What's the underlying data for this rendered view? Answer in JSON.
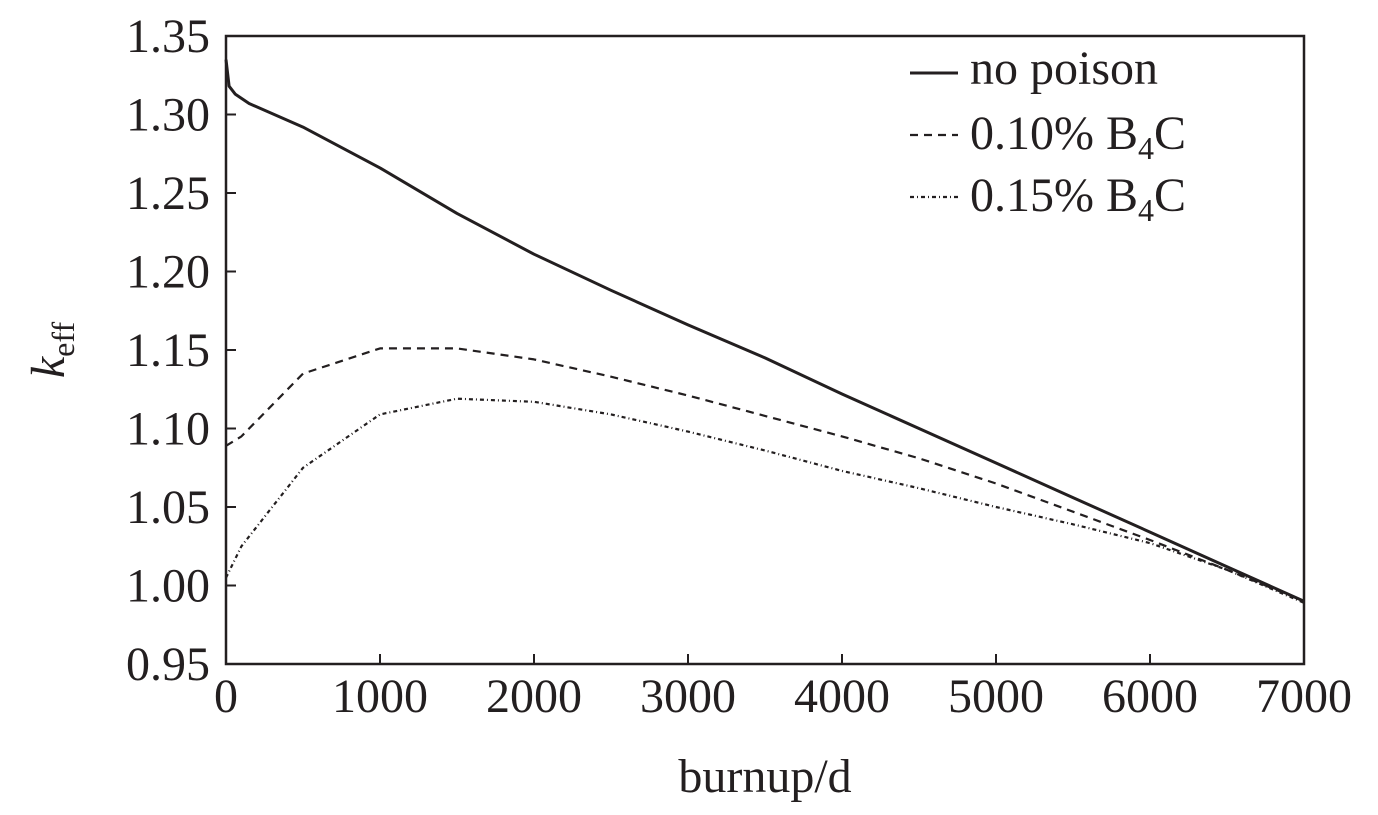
{
  "chart_data": {
    "type": "line",
    "xlabel": "burnup/d",
    "ylabel_main": "k",
    "ylabel_sub": "eff",
    "xlim": [
      0,
      7000
    ],
    "ylim": [
      0.95,
      1.35
    ],
    "x_ticks": [
      0,
      1000,
      2000,
      3000,
      4000,
      5000,
      6000,
      7000
    ],
    "y_ticks": [
      0.95,
      1.0,
      1.05,
      1.1,
      1.15,
      1.2,
      1.25,
      1.3,
      1.35
    ],
    "x_tick_labels": [
      "0",
      "1000",
      "2000",
      "3000",
      "4000",
      "5000",
      "6000",
      "7000"
    ],
    "y_tick_labels": [
      "0.95",
      "1.00",
      "1.05",
      "1.10",
      "1.15",
      "1.20",
      "1.25",
      "1.30",
      "1.35"
    ],
    "grid": false,
    "legend_position": "top-right",
    "series": [
      {
        "name": "no poison",
        "style": "solid",
        "x": [
          0,
          20,
          60,
          150,
          500,
          1000,
          1500,
          2000,
          2500,
          3000,
          3500,
          4000,
          4500,
          5000,
          5500,
          6000,
          6500,
          7000
        ],
        "y": [
          1.335,
          1.318,
          1.313,
          1.307,
          1.292,
          1.266,
          1.237,
          1.211,
          1.188,
          1.166,
          1.145,
          1.122,
          1.1,
          1.078,
          1.056,
          1.034,
          1.012,
          0.99
        ]
      },
      {
        "name": "0.10% B4C",
        "name_parts": [
          "0.10% B",
          "4",
          "C"
        ],
        "style": "dashed",
        "x": [
          0,
          100,
          500,
          1000,
          1500,
          2000,
          2500,
          3000,
          3500,
          4000,
          4500,
          5000,
          5500,
          6000,
          6500,
          7000
        ],
        "y": [
          1.089,
          1.095,
          1.135,
          1.151,
          1.151,
          1.144,
          1.133,
          1.121,
          1.108,
          1.095,
          1.081,
          1.065,
          1.047,
          1.029,
          1.01,
          0.99
        ]
      },
      {
        "name": "0.15% B4C",
        "name_parts": [
          "0.15% B",
          "4",
          "C"
        ],
        "style": "dash-dot",
        "x": [
          0,
          100,
          500,
          1000,
          1500,
          2000,
          2500,
          3000,
          3500,
          4000,
          4500,
          5000,
          5500,
          6000,
          6500,
          7000
        ],
        "y": [
          1.005,
          1.025,
          1.075,
          1.109,
          1.119,
          1.117,
          1.109,
          1.098,
          1.086,
          1.073,
          1.062,
          1.05,
          1.039,
          1.027,
          1.01,
          0.989
        ]
      }
    ]
  }
}
